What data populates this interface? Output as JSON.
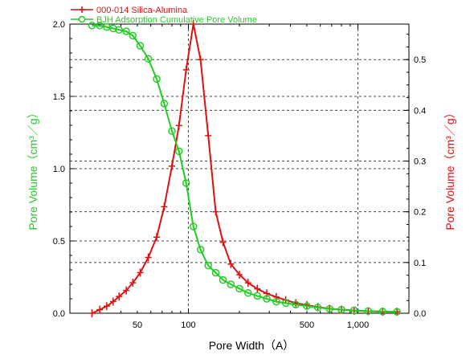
{
  "chart_data": {
    "type": "line",
    "xlabel": "Pore Width（A）",
    "ylabel_left": "Pore Volume（cm³／g）",
    "ylabel_right": "Pore Volume（cm³／g）",
    "x_scale": "log",
    "xlim": [
      20,
      2000
    ],
    "ylim_left": [
      0,
      2.0
    ],
    "ylim_right": [
      0,
      0.57
    ],
    "x_tick_labels": [
      {
        "value": 50,
        "label": "50"
      },
      {
        "value": 100,
        "label": "100"
      },
      {
        "value": 500,
        "label": "500"
      },
      {
        "value": 1000,
        "label": "1,000"
      }
    ],
    "y_left_ticks": [
      {
        "value": 0,
        "label": "0.0"
      },
      {
        "value": 0.5,
        "label": "0.5"
      },
      {
        "value": 1.0,
        "label": "1.0"
      },
      {
        "value": 1.5,
        "label": "1.5"
      },
      {
        "value": 2.0,
        "label": "2.0"
      }
    ],
    "y_right_ticks": [
      {
        "value": 0,
        "label": "0.0"
      },
      {
        "value": 0.1,
        "label": "0.1"
      },
      {
        "value": 0.2,
        "label": "0.2"
      },
      {
        "value": 0.3,
        "label": "0.3"
      },
      {
        "value": 0.4,
        "label": "0.4"
      },
      {
        "value": 0.5,
        "label": "0.5"
      }
    ],
    "legend_placement": "top-left",
    "grid": true,
    "series": [
      {
        "name": "000-014 Silica-Alumina",
        "axis": "right",
        "color": "#dd1111",
        "marker": "plus",
        "x": [
          27,
          30,
          33,
          36,
          39,
          43,
          47,
          52,
          58,
          65,
          72,
          80,
          88,
          97,
          107,
          118,
          131,
          145,
          160,
          178,
          200,
          225,
          255,
          290,
          330,
          375,
          430,
          500,
          580,
          680,
          800,
          950,
          1150,
          1400,
          1700
        ],
        "y": [
          0.0,
          0.007,
          0.014,
          0.023,
          0.033,
          0.045,
          0.06,
          0.08,
          0.11,
          0.15,
          0.21,
          0.29,
          0.37,
          0.48,
          0.57,
          0.5,
          0.35,
          0.2,
          0.14,
          0.097,
          0.076,
          0.06,
          0.048,
          0.039,
          0.032,
          0.026,
          0.02,
          0.016,
          0.012,
          0.009,
          0.007,
          0.005,
          0.004,
          0.003,
          0.003
        ]
      },
      {
        "name": "BJH Adsorption Cumulative Pore Volume",
        "axis": "left",
        "color": "#22cc22",
        "marker": "circle",
        "x": [
          27,
          30,
          33,
          36,
          39,
          43,
          47,
          52,
          58,
          65,
          72,
          80,
          88,
          97,
          107,
          118,
          131,
          145,
          160,
          178,
          200,
          225,
          255,
          290,
          330,
          375,
          430,
          500,
          580,
          680,
          800,
          950,
          1150,
          1400,
          1700
        ],
        "y": [
          1.99,
          1.99,
          1.98,
          1.97,
          1.96,
          1.95,
          1.92,
          1.85,
          1.76,
          1.62,
          1.45,
          1.26,
          1.12,
          0.9,
          0.6,
          0.44,
          0.33,
          0.28,
          0.23,
          0.2,
          0.17,
          0.14,
          0.12,
          0.1,
          0.08,
          0.07,
          0.06,
          0.05,
          0.04,
          0.03,
          0.025,
          0.02,
          0.015,
          0.012,
          0.01
        ]
      }
    ]
  }
}
